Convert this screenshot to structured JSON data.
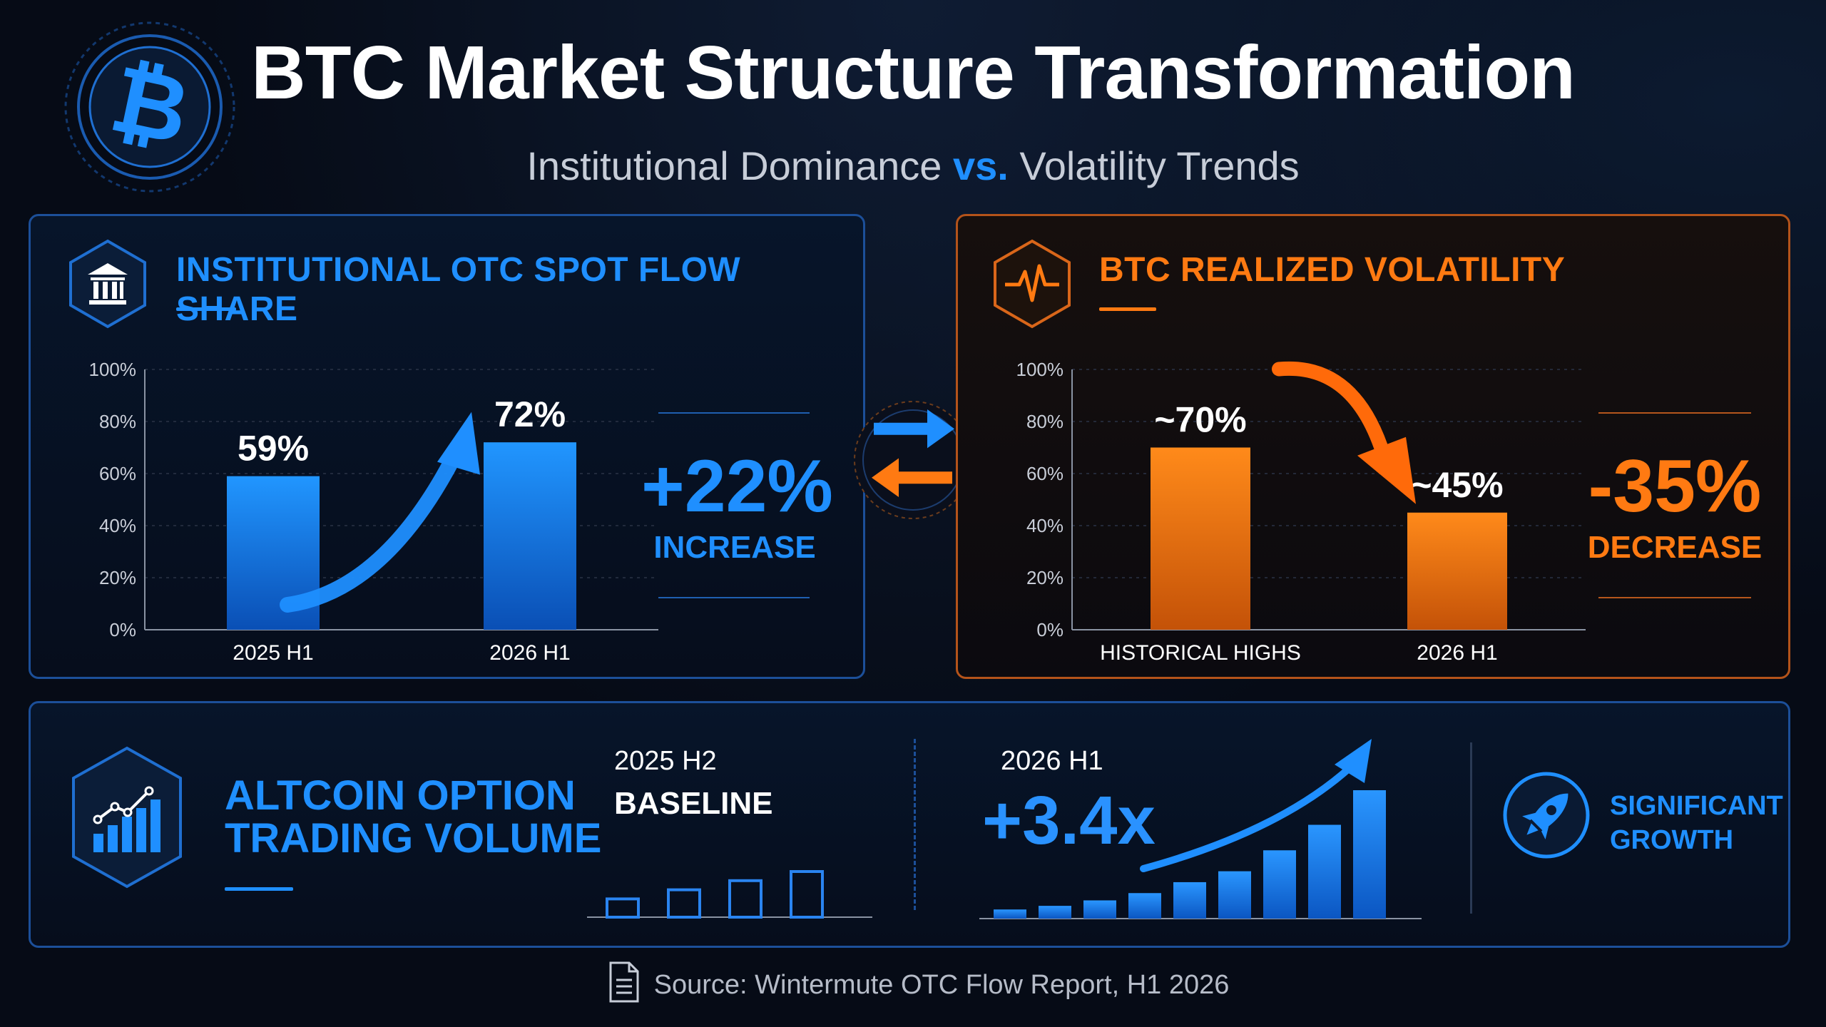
{
  "header": {
    "title": "BTC Market Structure Transformation",
    "subtitle_part1": "Institutional Dominance ",
    "subtitle_vs": "vs.",
    "subtitle_part2": " Volatility Trends"
  },
  "panels": {
    "otc": {
      "title": "INSTITUTIONAL OTC SPOT FLOW SHARE",
      "delta": "+22%",
      "delta_label": "INCREASE"
    },
    "volatility": {
      "title": "BTC REALIZED VOLATILITY",
      "delta": "-35%",
      "delta_label": "DECREASE"
    },
    "altcoin": {
      "title_line1": "ALTCOIN OPTION",
      "title_line2": "TRADING VOLUME",
      "left_period": "2025 H2",
      "left_label": "BASELINE",
      "right_period": "2026 H1",
      "right_value": "+3.4x",
      "badge_line1": "SIGNIFICANT",
      "badge_line2": "GROWTH"
    }
  },
  "source": "Source: Wintermute OTC Flow Report, H1 2026",
  "colors": {
    "blue": "#1f8fff",
    "orange": "#ff7a12",
    "background": "#060b16"
  },
  "icons": {
    "logo": "bitcoin-icon",
    "otc": "bank-icon",
    "volatility": "pulse-icon",
    "swap": "swap-arrows-icon",
    "altcoin": "bar-chart-icon",
    "growth": "rocket-icon",
    "source": "document-icon"
  },
  "chart_data": [
    {
      "type": "bar",
      "title": "INSTITUTIONAL OTC SPOT FLOW SHARE",
      "categories": [
        "2025 H1",
        "2026 H1"
      ],
      "values": [
        59,
        72
      ],
      "data_labels": [
        "59%",
        "72%"
      ],
      "yticks": [
        "0%",
        "20%",
        "40%",
        "60%",
        "80%",
        "100%"
      ],
      "ylim": [
        0,
        100
      ],
      "grid": true
    },
    {
      "type": "bar",
      "title": "BTC REALIZED VOLATILITY",
      "categories": [
        "HISTORICAL HIGHS",
        "2026 H1"
      ],
      "values": [
        70,
        45
      ],
      "data_labels": [
        "~70%",
        "~45%"
      ],
      "yticks": [
        "0%",
        "20%",
        "40%",
        "60%",
        "80%",
        "100%"
      ],
      "ylim": [
        0,
        100
      ],
      "grid": true
    },
    {
      "type": "bar",
      "title": "ALTCOIN OPTION TRADING VOLUME — 2025 H2 BASELINE",
      "values": [
        1,
        1.5,
        2,
        2.5
      ]
    },
    {
      "type": "bar",
      "title": "ALTCOIN OPTION TRADING VOLUME — 2026 H1",
      "values": [
        1,
        1.4,
        2,
        2.8,
        4,
        5.2,
        7.5,
        10.3,
        14.1
      ]
    }
  ]
}
